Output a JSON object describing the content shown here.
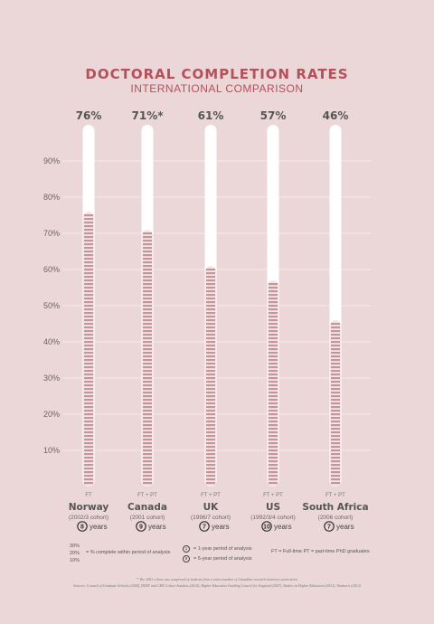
{
  "header": {
    "title": "DOCTORAL COMPLETION RATES",
    "subtitle": "INTERNATIONAL COMPARISON"
  },
  "colors": {
    "background": "#ecd7d8",
    "accent": "#b3505a",
    "stripe": "#c99499",
    "tube": "#ffffff",
    "gridline": "#f6eaeb"
  },
  "chart_data": {
    "type": "bar",
    "title": "DOCTORAL COMPLETION RATES",
    "subtitle": "INTERNATIONAL COMPARISON",
    "ylim": [
      0,
      100
    ],
    "yticks": [
      10,
      20,
      30,
      40,
      50,
      60,
      70,
      80,
      90
    ],
    "ytick_labels": [
      "10%",
      "20%",
      "30%",
      "40%",
      "50%",
      "60%",
      "70%",
      "80%",
      "90%"
    ],
    "grid": true,
    "categories": [
      "Norway",
      "Canada",
      "UK",
      "US",
      "South Africa"
    ],
    "values": [
      76,
      71,
      61,
      57,
      46
    ],
    "value_labels": [
      "76%",
      "71%*",
      "61%",
      "57%",
      "46%"
    ],
    "modes": [
      "FT",
      "FT + PT",
      "FT + PT",
      "FT + PT",
      "FT + PT"
    ],
    "cohorts": [
      "(2002/3 cohort)",
      "(2001 cohort)",
      "(1996/7 cohort)",
      "(1992/3/4 cohort)",
      "(2006 cohort)"
    ],
    "years": [
      8,
      9,
      7,
      10,
      7
    ],
    "years_label": "years"
  },
  "legend": {
    "levels": [
      "30%",
      "20%",
      "10%"
    ],
    "levels_desc": "= % complete within period of analysis",
    "period1": "= 1-year period of analysis",
    "period1_num": "1",
    "period5": "= 5-year period of analysis",
    "period5_num": "5",
    "ftpt": "FT = Full-time   PT = part-time PhD graduates"
  },
  "footnote": "* The 2001 cohort was comprised of students from a select number of Canadian research-intensive universities",
  "sources": "Sources: Council of Graduate Schools (2008), DIMT and CHE Cohort Analysis (2014), Higher Education Funding Council for England (2007), Studies in Higher Education (2013), Tamburri (2013)"
}
